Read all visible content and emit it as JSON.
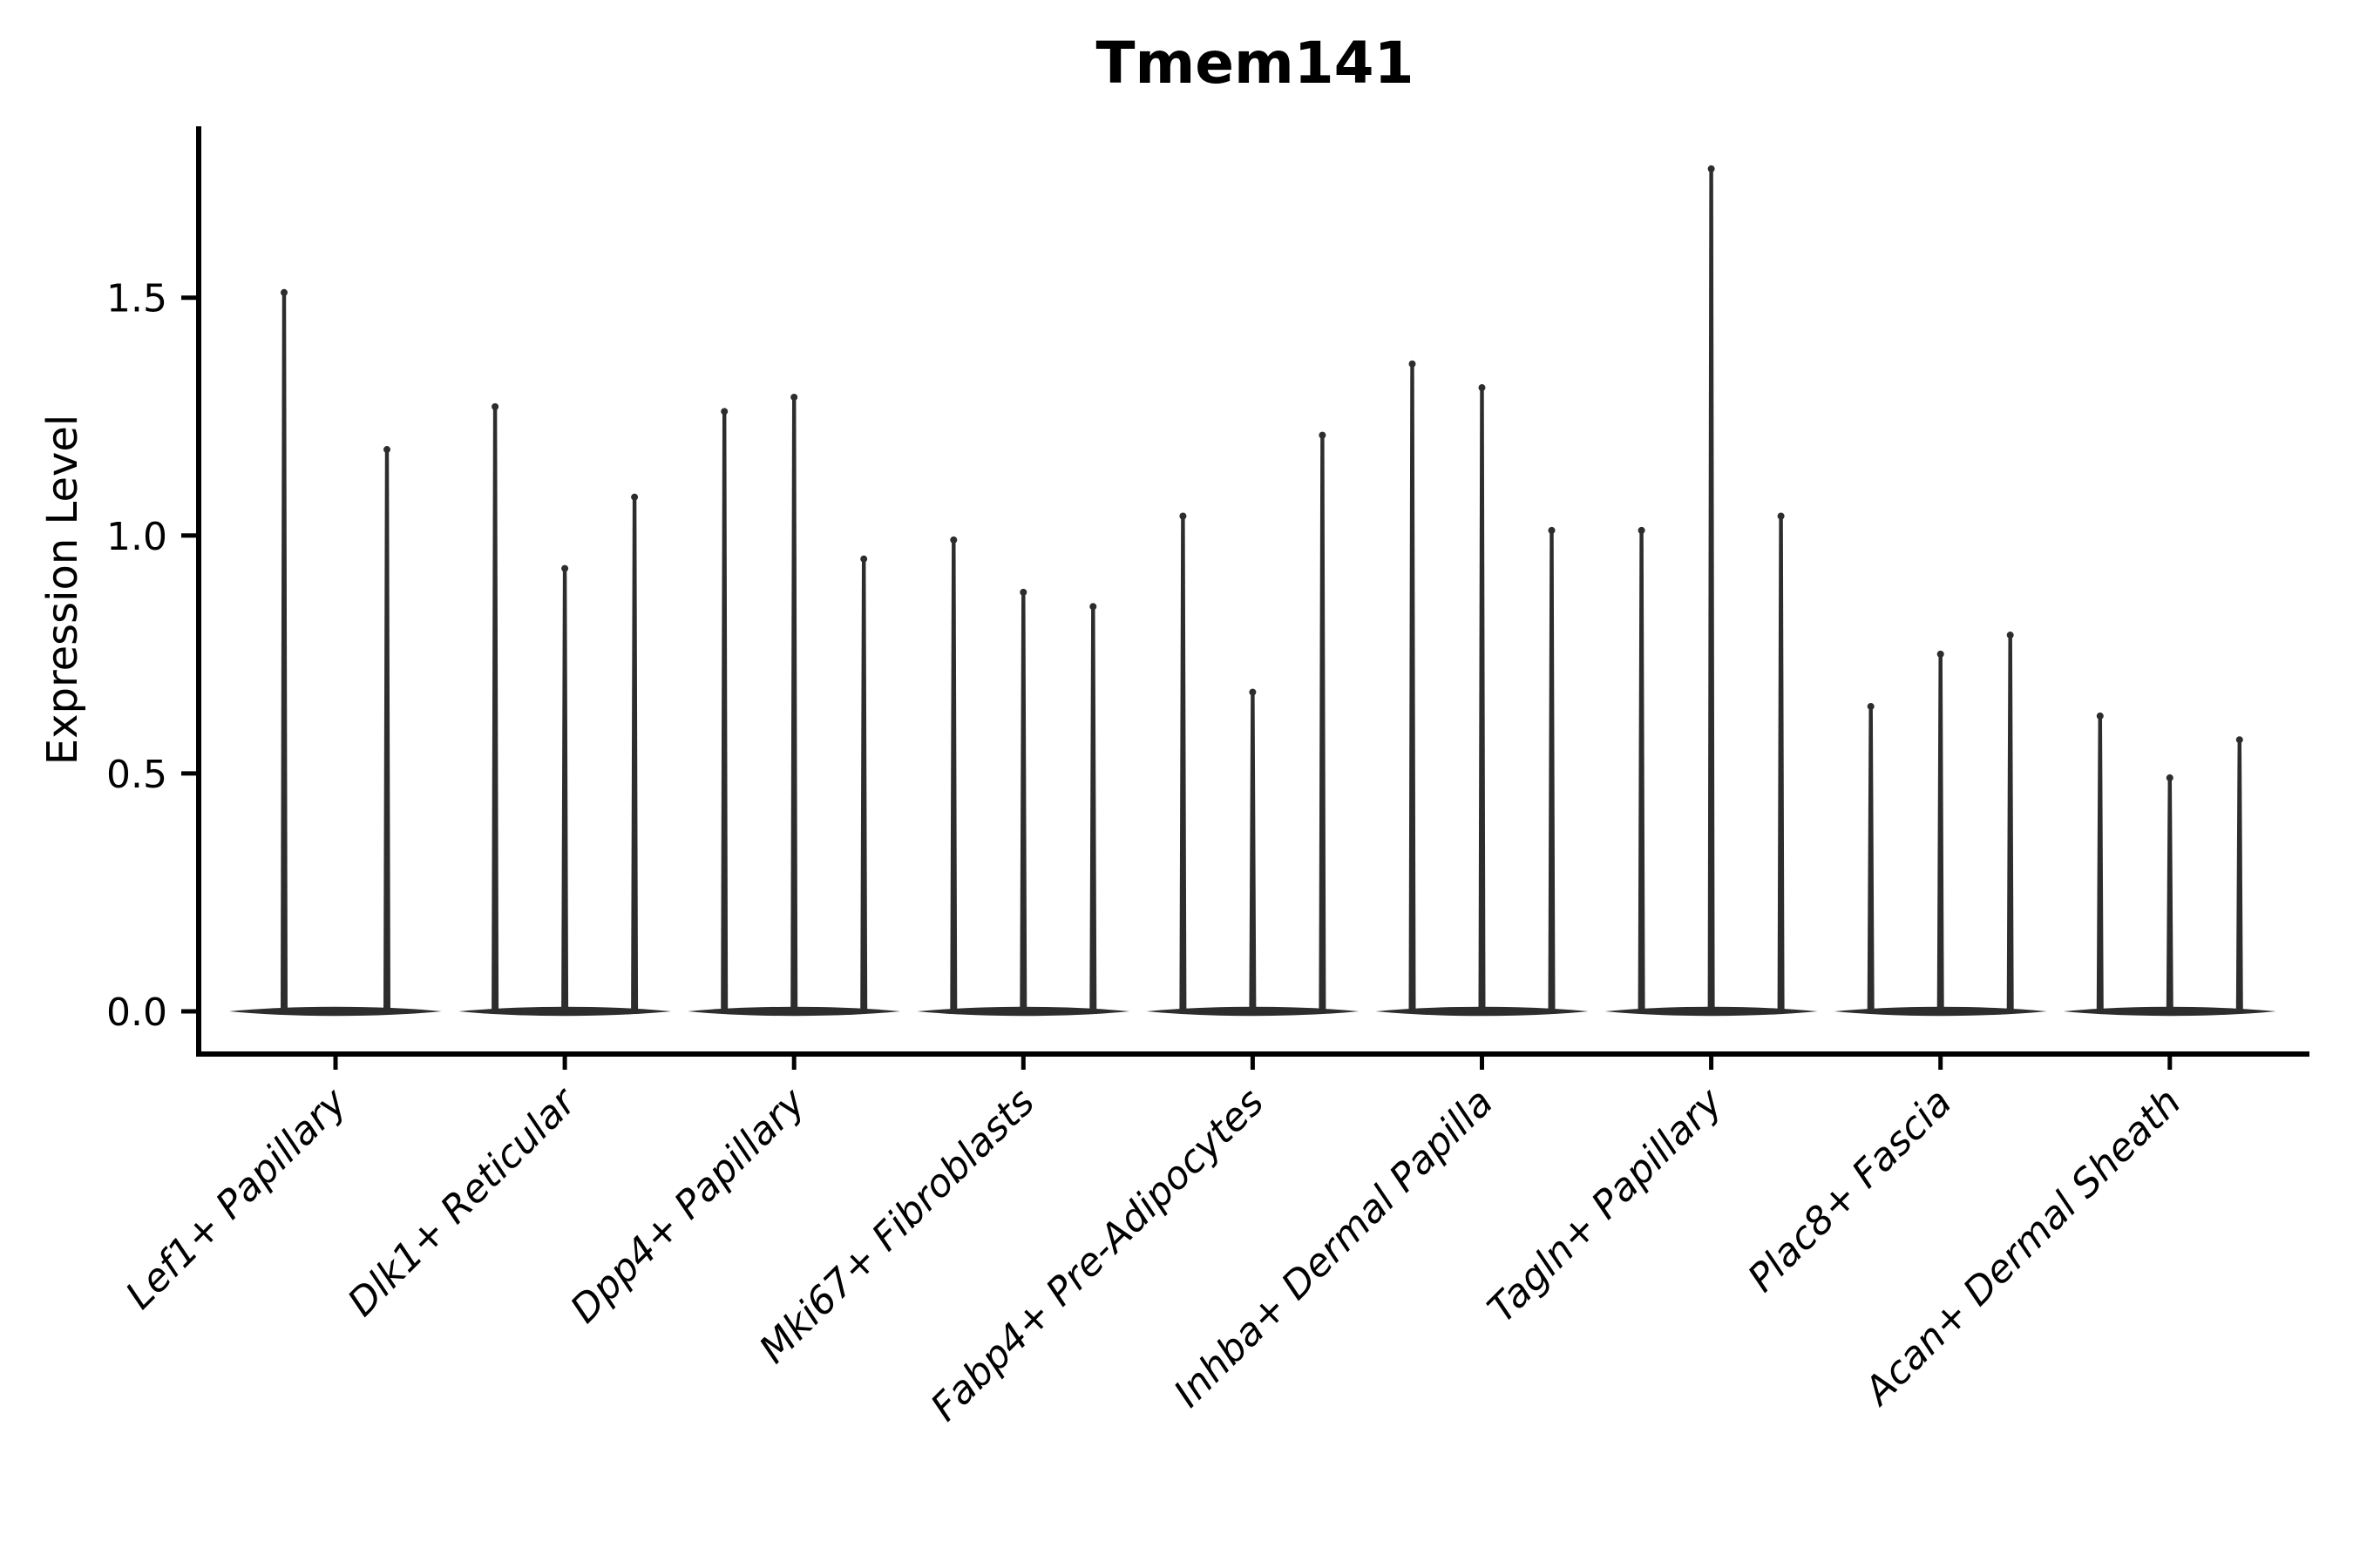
{
  "title": "Tmem141",
  "chart_data": {
    "type": "violin",
    "title": "Tmem141",
    "xlabel": "",
    "ylabel": "Expression Level",
    "yticks": [
      0.0,
      0.5,
      1.0,
      1.5
    ],
    "ylim": [
      -0.09,
      1.86
    ],
    "grid": false,
    "legend": "none",
    "description": "Stacked-style violin plot of single-gene expression; each category shows 2-3 very thin spike-like violins with wide flat bases at zero. Values below are the peak (maximum) expression of each violin.",
    "categories": [
      "Lef1+ Papillary",
      "Dlk1+ Reticular",
      "Dpp4+ Papillary",
      "Mki67+ Fibroblasts",
      "Fabp4+ Pre-Adipocytes",
      "Inhba+ Dermal Papilla",
      "Tagln+ Papillary",
      "Plac8+ Fascia",
      "Acan+ Dermal Sheath"
    ],
    "groups": [
      {
        "label": "Lef1+ Papillary",
        "violin_maxima": [
          1.52,
          1.19
        ]
      },
      {
        "label": "Dlk1+ Reticular",
        "violin_maxima": [
          1.28,
          0.94,
          1.09
        ]
      },
      {
        "label": "Dpp4+ Papillary",
        "violin_maxima": [
          1.27,
          1.3,
          0.96
        ]
      },
      {
        "label": "Mki67+ Fibroblasts",
        "violin_maxima": [
          1.0,
          0.89,
          0.86
        ]
      },
      {
        "label": "Fabp4+ Pre-Adipocytes",
        "violin_maxima": [
          1.05,
          0.68,
          1.22
        ]
      },
      {
        "label": "Inhba+ Dermal Papilla",
        "violin_maxima": [
          1.37,
          1.32,
          1.02
        ]
      },
      {
        "label": "Tagln+ Papillary",
        "violin_maxima": [
          1.02,
          1.78,
          1.05
        ]
      },
      {
        "label": "Plac8+ Fascia",
        "violin_maxima": [
          0.65,
          0.76,
          0.8
        ]
      },
      {
        "label": "Acan+ Dermal Sheath",
        "violin_maxima": [
          0.63,
          0.5,
          0.58
        ]
      }
    ],
    "baseline_value": 0.0,
    "colors": {
      "violin": "#2d2d2d",
      "axis": "#000000",
      "text": "#000000",
      "background": "#ffffff"
    }
  }
}
